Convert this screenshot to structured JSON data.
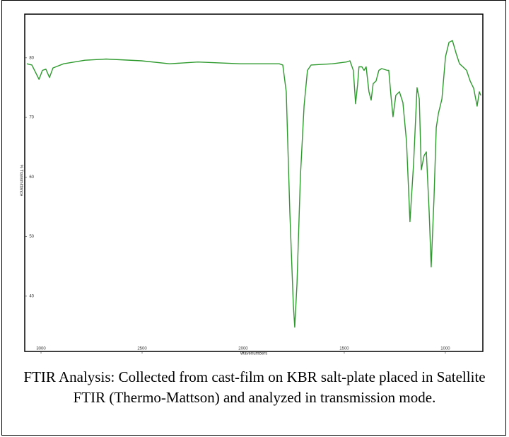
{
  "chart_data": {
    "type": "line",
    "xlabel": "Wavenumbers",
    "ylabel": "% Transmittance",
    "x": [
      3070,
      3045,
      3010,
      2993,
      2976,
      2958,
      2941,
      2888,
      2783,
      2678,
      2503,
      2364,
      2224,
      2014,
      1822,
      1804,
      1787,
      1769,
      1752,
      1745,
      1734,
      1717,
      1699,
      1682,
      1664,
      1559,
      1490,
      1472,
      1455,
      1444,
      1434,
      1427,
      1413,
      1402,
      1392,
      1378,
      1367,
      1357,
      1343,
      1329,
      1315,
      1287,
      1280,
      1269,
      1259,
      1245,
      1227,
      1210,
      1192,
      1175,
      1157,
      1140,
      1129,
      1119,
      1105,
      1094,
      1080,
      1070,
      1056,
      1045,
      1034,
      1017,
      999,
      982,
      965,
      947,
      930,
      913,
      895,
      877,
      860,
      843,
      832,
      825
    ],
    "values": [
      79.0,
      78.8,
      76.4,
      77.9,
      78.1,
      76.7,
      78.3,
      79.0,
      79.6,
      79.8,
      79.5,
      79.0,
      79.3,
      79.0,
      79.0,
      78.8,
      74.3,
      54.0,
      38.6,
      34.8,
      42.1,
      60.0,
      71.9,
      77.9,
      78.8,
      79.0,
      79.3,
      79.5,
      77.9,
      72.3,
      75.5,
      78.5,
      78.5,
      77.9,
      78.5,
      74.3,
      72.9,
      75.7,
      76.1,
      77.9,
      78.2,
      77.9,
      77.9,
      73.7,
      70.1,
      73.7,
      74.3,
      72.5,
      66.0,
      52.5,
      62.4,
      75.0,
      73.1,
      61.2,
      63.6,
      64.2,
      54.0,
      44.9,
      56.4,
      68.3,
      70.7,
      73.1,
      80.2,
      82.6,
      82.9,
      80.8,
      79.0,
      78.5,
      77.9,
      76.1,
      74.9,
      71.9,
      74.3,
      73.7
    ],
    "color": "#2e9a2e",
    "xlim": [
      3070,
      825
    ],
    "xticks": [
      3000,
      2500,
      2000,
      1500,
      1000
    ],
    "ylim": [
      31.2,
      87.1
    ],
    "yticks": [
      80,
      70,
      60,
      50,
      40
    ]
  },
  "caption": "FTIR Analysis: Collected from cast-film on KBR salt-plate placed in Satellite FTIR (Thermo-Mattson) and analyzed in transmission mode."
}
